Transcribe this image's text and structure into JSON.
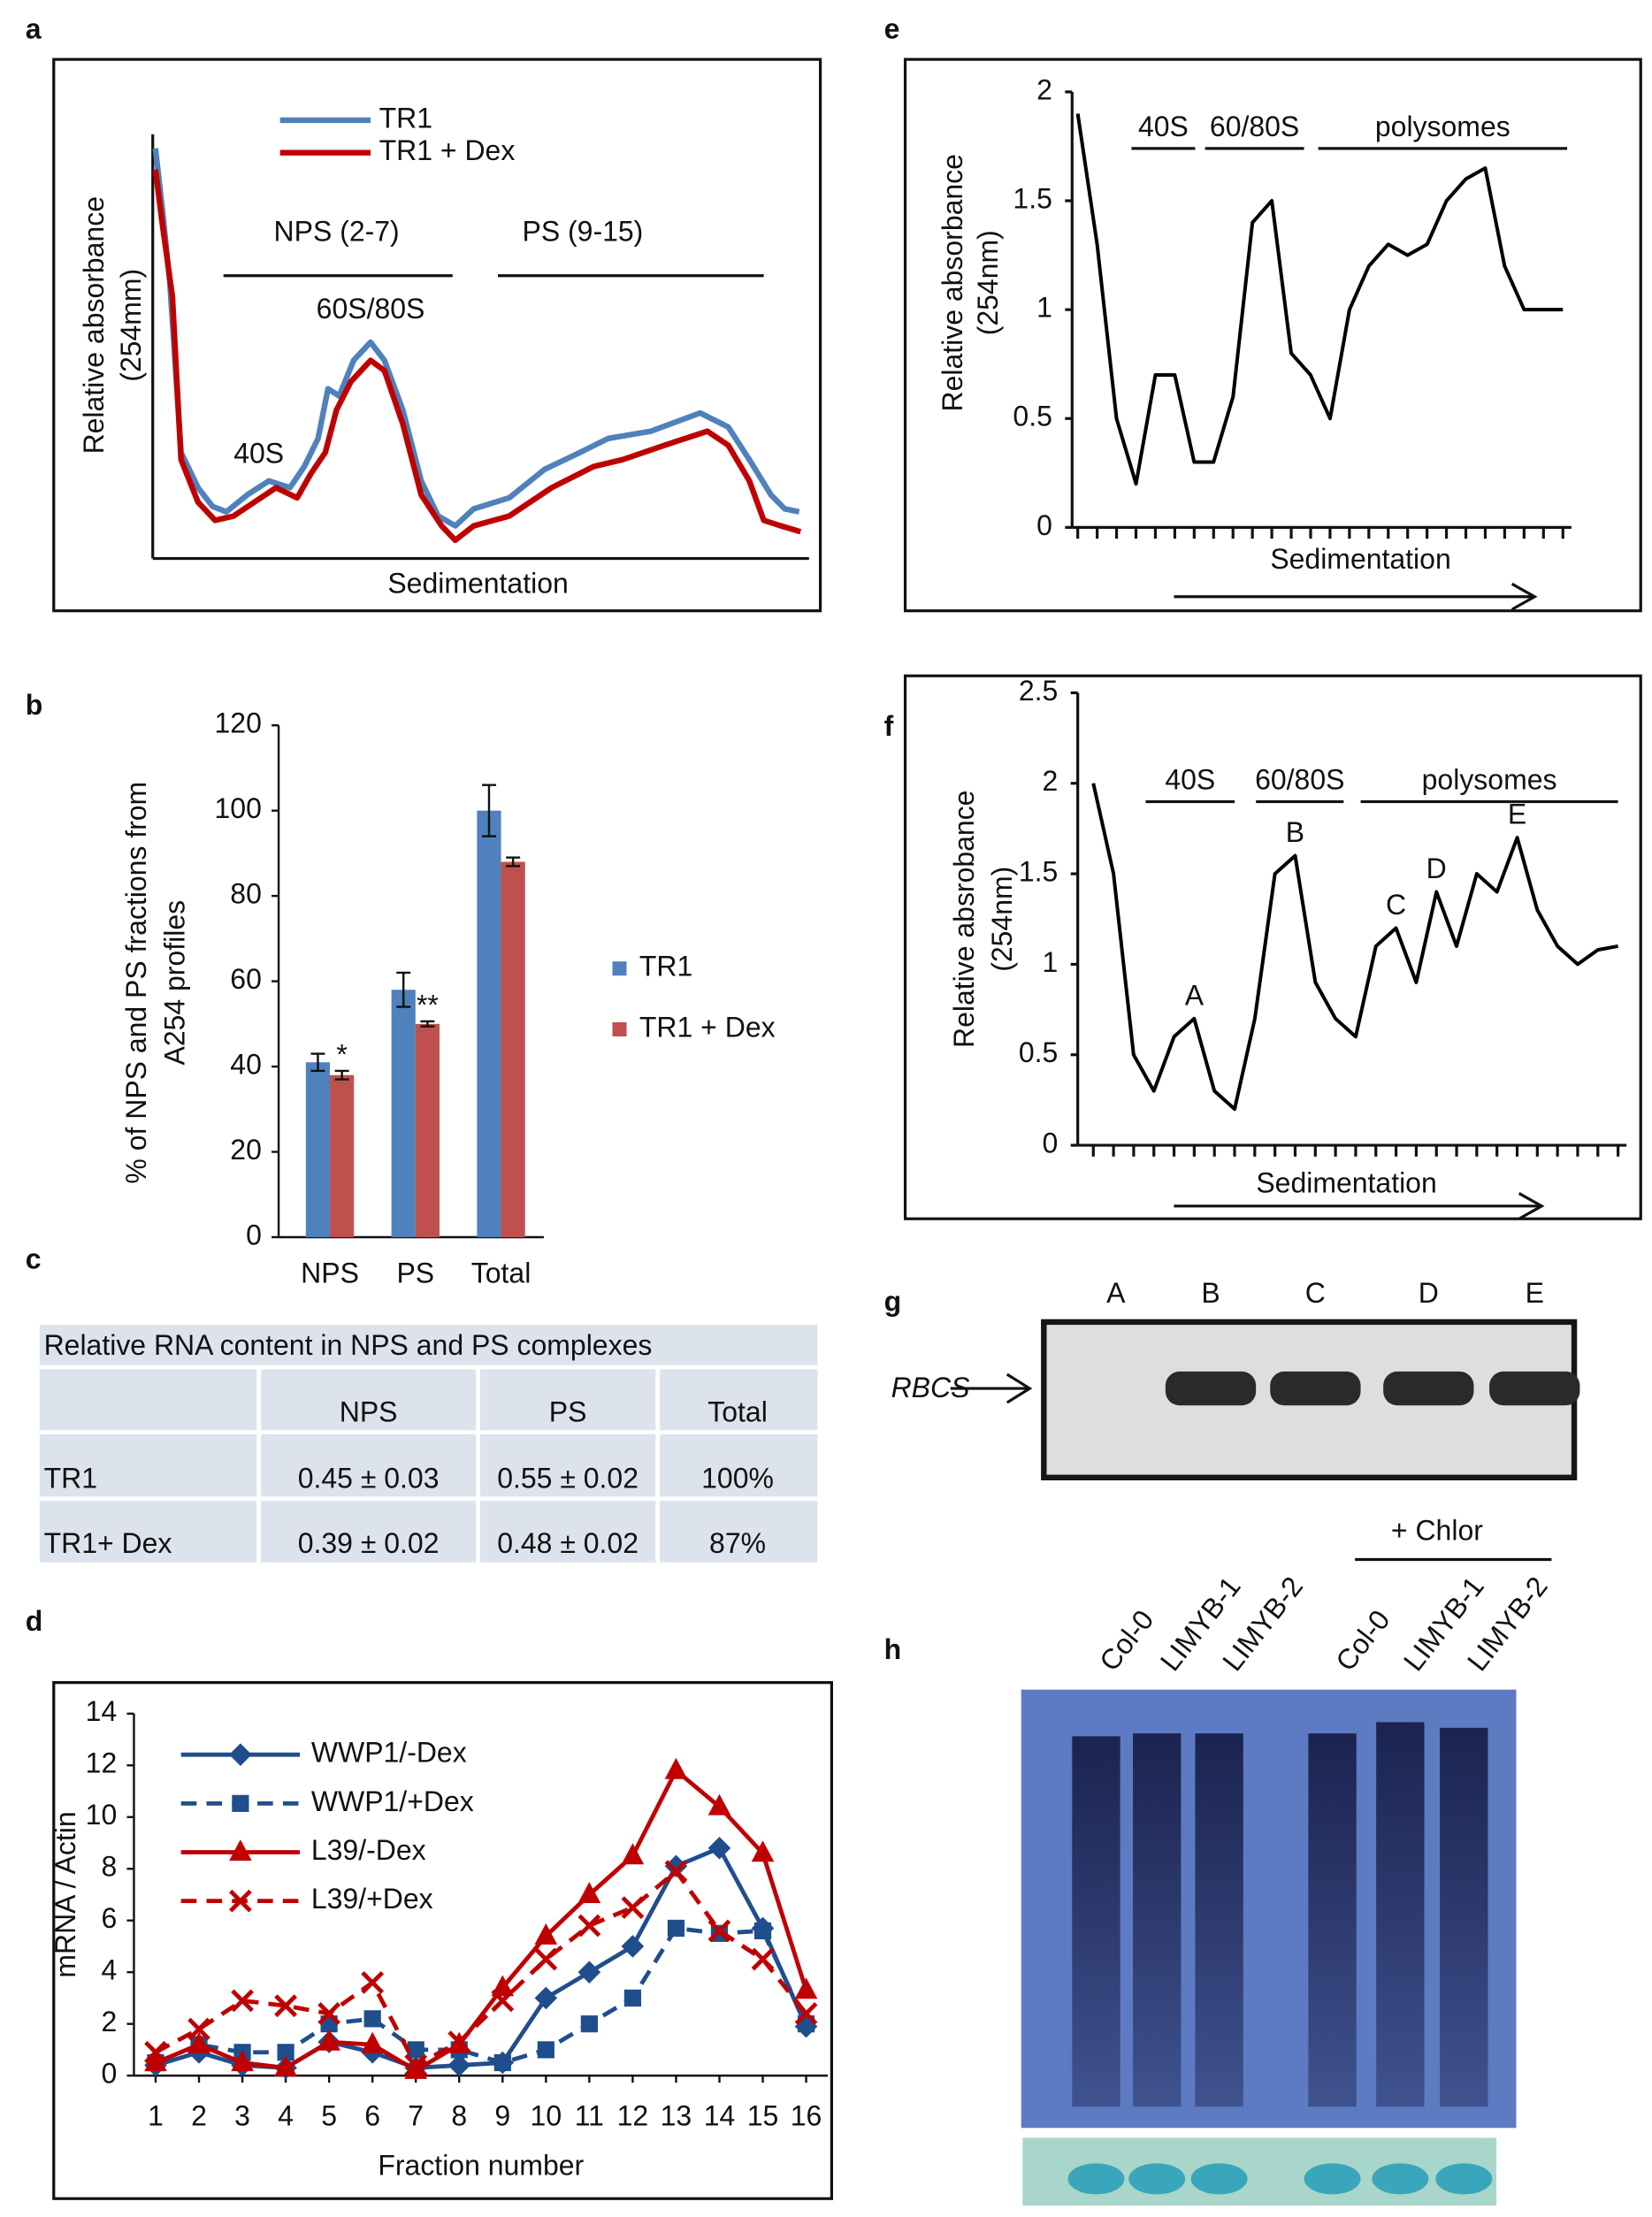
{
  "panel_labels": [
    "a",
    "b",
    "c",
    "d",
    "e",
    "f",
    "g",
    "h"
  ],
  "chart_data": [
    {
      "type": "line",
      "ylabel": [
        "Relative absorbance",
        "(254mm)"
      ],
      "xlabel": "Sedimentation",
      "xlim": [
        0,
        100
      ],
      "ylim": [
        0,
        100
      ],
      "annotations": [
        "NPS (2-7)",
        "PS (9-15)",
        "60S/80S",
        "40S"
      ],
      "series": [
        {
          "name": "TR1",
          "color": "#4f81bd",
          "x": [
            0.4,
            1.5,
            2.6,
            4.3,
            6.9,
            9.1,
            11.2,
            14.4,
            17.7,
            20.9,
            23.1,
            25.2,
            26.7,
            28.4,
            30.6,
            33.2,
            35.3,
            38.1,
            40.9,
            43.5,
            46.1,
            48.9,
            54.3,
            59.7,
            65.1,
            69.4,
            75.9,
            83.4,
            87.7,
            90.9,
            94.2,
            96.3,
            98.5
          ],
          "values": [
            96.7,
            81.7,
            65,
            25,
            16.7,
            12.3,
            11,
            15,
            18.3,
            16.7,
            21.7,
            28.3,
            40,
            38.3,
            46.7,
            51,
            46.7,
            35,
            18.3,
            10,
            7.7,
            11.7,
            14.3,
            21,
            25,
            28.3,
            30,
            34.3,
            31,
            23.3,
            15,
            11.7,
            11
          ]
        },
        {
          "name": "TR1 + Dex",
          "color": "#c00000",
          "x": [
            0.4,
            1.5,
            3.0,
            4.3,
            6.9,
            9.5,
            12.3,
            15.5,
            18.8,
            22.0,
            24.1,
            26.3,
            28.0,
            30.2,
            33.2,
            35.3,
            38.1,
            40.9,
            44.0,
            46.1,
            48.9,
            54.3,
            60.8,
            67.2,
            71.6,
            78.0,
            84.5,
            87.7,
            90.9,
            93.1,
            95.7,
            98.7
          ],
          "values": [
            91.7,
            78.3,
            61.7,
            23.3,
            13.3,
            9,
            10,
            13.3,
            16.7,
            14.3,
            20,
            25,
            35,
            41.7,
            46.7,
            44.3,
            31.7,
            15,
            7.7,
            4.3,
            7.7,
            10,
            16.7,
            21.7,
            23.3,
            26.7,
            30,
            26.7,
            18.3,
            9,
            7.7,
            6.3
          ]
        }
      ]
    },
    {
      "type": "bar",
      "ylabel": [
        "% of NPS and PS fractions from",
        "A254 profiles"
      ],
      "categories": [
        "NPS",
        "PS",
        "Total"
      ],
      "ylim": [
        0,
        120
      ],
      "yticks": [
        0,
        20,
        40,
        60,
        80,
        100,
        120
      ],
      "series": [
        {
          "name": "TR1",
          "color": "#4f81bd",
          "values": [
            41,
            58,
            100
          ],
          "errors": [
            2,
            4,
            6
          ]
        },
        {
          "name": "TR1 + Dex",
          "color": "#c0504d",
          "values": [
            38,
            50,
            88
          ],
          "errors": [
            1,
            0.6,
            1
          ],
          "significance": [
            "*",
            "**",
            null
          ]
        }
      ]
    },
    {
      "type": "line",
      "xlabel": "Fraction number",
      "ylabel": "mRNA / Actin",
      "x": [
        1,
        2,
        3,
        4,
        5,
        6,
        7,
        8,
        9,
        10,
        11,
        12,
        13,
        14,
        15,
        16
      ],
      "xlim": [
        0.5,
        16.5
      ],
      "xticks": [
        1,
        2,
        3,
        4,
        5,
        6,
        7,
        8,
        9,
        10,
        11,
        12,
        13,
        14,
        15,
        16
      ],
      "ylim": [
        0,
        14
      ],
      "yticks": [
        0,
        2,
        4,
        6,
        8,
        10,
        12,
        14
      ],
      "series": [
        {
          "name": "WWP1/-Dex",
          "color": "#1f4e8c",
          "marker": "diamond",
          "dashed": false,
          "values": [
            0.4,
            0.9,
            0.4,
            0.3,
            1.3,
            0.9,
            0.3,
            0.4,
            0.5,
            3,
            4,
            5,
            8.1,
            8.8,
            5.7,
            1.9
          ]
        },
        {
          "name": "WWP1/+Dex",
          "color": "#1f4e8c",
          "marker": "square",
          "dashed": true,
          "values": [
            0.5,
            1.2,
            0.9,
            0.9,
            2,
            2.2,
            1,
            1,
            0.5,
            1,
            2,
            3,
            5.7,
            5.5,
            5.6,
            2
          ]
        },
        {
          "name": "L39/-Dex",
          "color": "#c00000",
          "marker": "triangle",
          "dashed": false,
          "values": [
            0.5,
            1.2,
            0.5,
            0.3,
            1.3,
            1.2,
            0.2,
            1.2,
            3.4,
            5.4,
            7,
            8.5,
            11.8,
            10.4,
            8.6,
            3.3
          ]
        },
        {
          "name": "L39/+Dex",
          "color": "#c00000",
          "marker": "x",
          "dashed": true,
          "values": [
            0.9,
            1.8,
            2.9,
            2.7,
            2.4,
            3.6,
            0.4,
            1.3,
            2.9,
            4.5,
            5.8,
            6.5,
            7.9,
            5.6,
            4.5,
            2.4
          ]
        }
      ]
    },
    {
      "type": "line",
      "ylabel": [
        "Relative absorbance",
        "(254nm)"
      ],
      "xlabel": "Sedimentation",
      "annotations": [
        "40S",
        "60/80S",
        "polysomes"
      ],
      "color": "#000000",
      "ylim": [
        0,
        2
      ],
      "yticks": [
        0,
        0.5,
        1,
        1.5,
        2
      ],
      "categories": [
        null,
        null,
        null,
        null,
        null,
        null,
        null,
        null,
        null,
        null,
        null,
        null,
        null,
        null,
        null,
        null,
        null,
        null,
        null,
        null,
        null,
        null,
        null,
        null,
        null,
        null
      ],
      "values": [
        1.9,
        1.3,
        0.5,
        0.2,
        0.7,
        0.7,
        0.3,
        0.3,
        0.6,
        1.4,
        1.5,
        0.8,
        0.7,
        0.5,
        1.0,
        1.2,
        1.3,
        1.25,
        1.3,
        1.5,
        1.6,
        1.65,
        1.2,
        1.0,
        1.0,
        1.0
      ]
    },
    {
      "type": "line",
      "ylabel": [
        "Relative absrobance",
        "(254nm)"
      ],
      "xlabel": "Sedimentation",
      "annotations": [
        "40S",
        "60/80S",
        "polysomes"
      ],
      "color": "#000000",
      "ylim": [
        0,
        2.5
      ],
      "yticks": [
        0,
        0.5,
        1,
        1.5,
        2,
        2.5
      ],
      "categories": [
        null,
        null,
        null,
        null,
        null,
        null,
        null,
        null,
        null,
        null,
        null,
        null,
        null,
        null,
        null,
        null,
        null,
        null,
        null,
        null,
        null,
        null,
        null,
        null,
        null,
        null,
        null
      ],
      "values": [
        2.0,
        1.5,
        0.5,
        0.3,
        0.6,
        0.7,
        0.3,
        0.2,
        0.7,
        1.5,
        1.6,
        0.9,
        0.7,
        0.6,
        1.1,
        1.2,
        0.9,
        1.4,
        1.1,
        1.5,
        1.4,
        1.7,
        1.3,
        1.1,
        1.0,
        1.08,
        1.1
      ],
      "point_labels": [
        null,
        null,
        null,
        null,
        null,
        "A",
        null,
        null,
        null,
        null,
        "B",
        null,
        null,
        null,
        null,
        "C",
        null,
        "D",
        null,
        null,
        null,
        "E",
        null,
        null,
        null,
        null,
        null
      ]
    }
  ],
  "table": {
    "title": "Relative RNA content in NPS and PS complexes",
    "header": [
      "NPS",
      "PS",
      "Total"
    ],
    "rows": [
      [
        "TR1",
        "0.45 ± 0.03",
        "0.55 ± 0.02",
        "100%"
      ],
      [
        "TR1+ Dex",
        "0.39 ± 0.02",
        "0.48 ± 0.02",
        "87%"
      ]
    ]
  },
  "gel_g": {
    "lanes": [
      "A",
      "B",
      "C",
      "D",
      "E"
    ],
    "marker": "RBCS"
  },
  "gel_h": {
    "lanes": [
      "Col-0",
      "LIMYB-1",
      "LIMYB-2",
      "Col-0",
      "LIMYB-1",
      "LIMYB-2"
    ],
    "treatment": "+ Chlor"
  }
}
